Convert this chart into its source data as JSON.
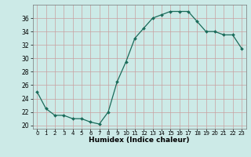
{
  "x": [
    0,
    1,
    2,
    3,
    4,
    5,
    6,
    7,
    8,
    9,
    10,
    11,
    12,
    13,
    14,
    15,
    16,
    17,
    18,
    19,
    20,
    21,
    22,
    23
  ],
  "y": [
    25.0,
    22.5,
    21.5,
    21.5,
    21.0,
    21.0,
    20.5,
    20.2,
    22.0,
    26.5,
    29.5,
    33.0,
    34.5,
    36.0,
    36.5,
    37.0,
    37.0,
    37.0,
    35.5,
    34.0,
    34.0,
    33.5,
    33.5,
    31.5
  ],
  "line_color": "#1a6b5a",
  "marker": "D",
  "marker_size": 2.0,
  "bg_color": "#cceae7",
  "grid_color": "#c8a0a0",
  "xlabel": "Humidex (Indice chaleur)",
  "ylim": [
    19.5,
    38.0
  ],
  "xlim": [
    -0.5,
    23.5
  ],
  "yticks": [
    20,
    22,
    24,
    26,
    28,
    30,
    32,
    34,
    36
  ],
  "tick_fontsize": 5.5,
  "xlabel_fontsize": 6.5
}
